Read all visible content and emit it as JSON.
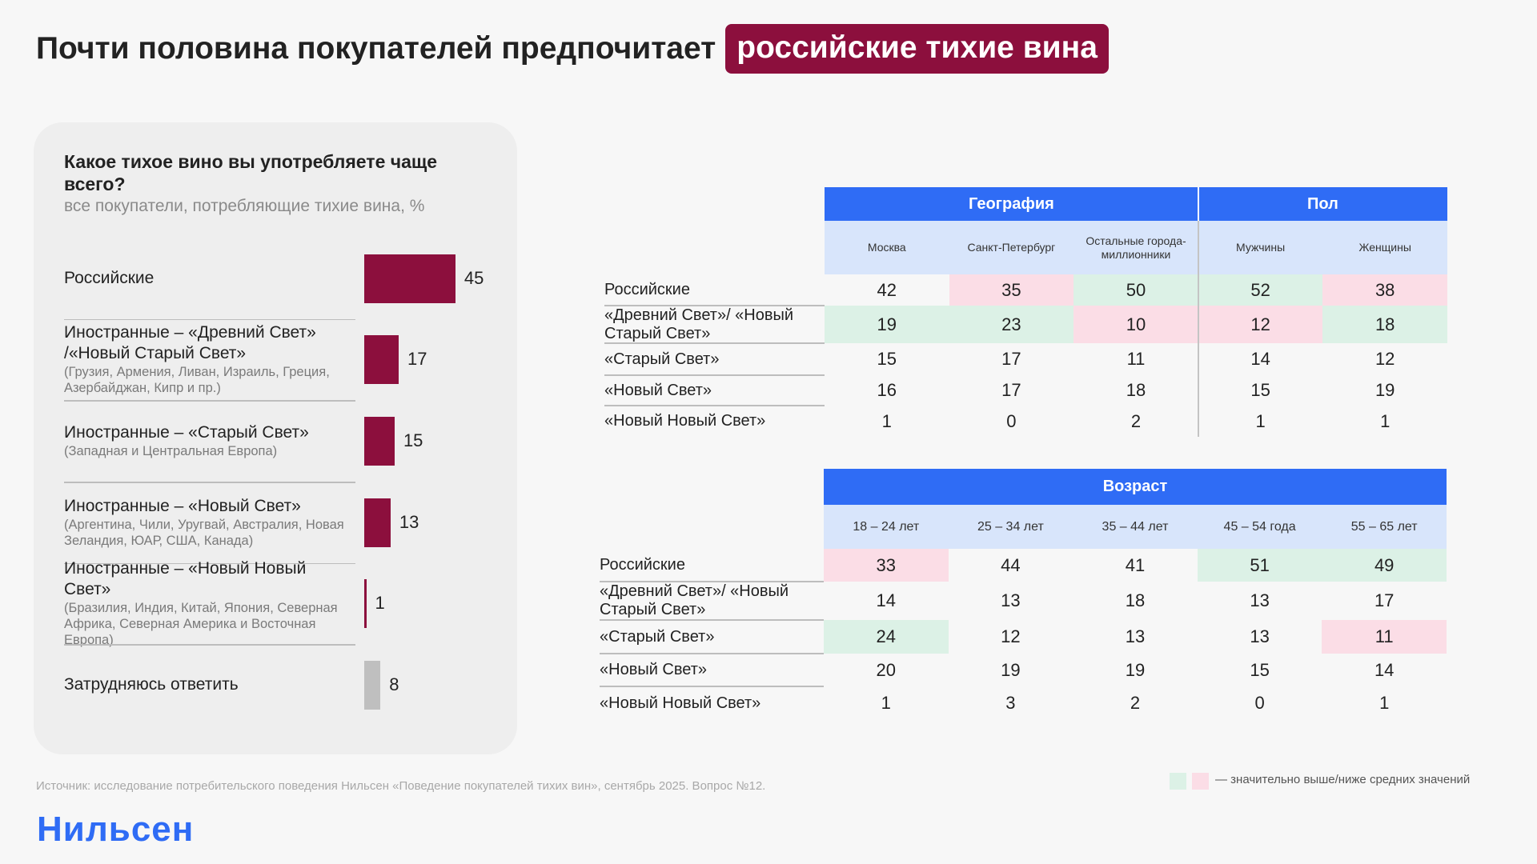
{
  "header": {
    "title": "Почти половина покупателей предпочитает",
    "title_highlight": "российские тихие вина"
  },
  "chart_data": {
    "type": "bar",
    "orientation": "horizontal",
    "title": "Какое тихое вино вы употребляете чаще всего?",
    "subtitle": "все покупатели, потребляющие тихие вина, %",
    "categories": [
      "Российские",
      "Иностранные – «Древний Свет» /«Новый Старый Свет»",
      "Иностранные – «Старый Свет»",
      "Иностранные – «Новый Свет»",
      "Иностранные – «Новый Новый Свет»",
      "Затрудняюсь ответить"
    ],
    "category_notes": [
      null,
      "(Грузия, Армения, Ливан, Израиль, Греция, Азербайджан, Кипр и пр.)",
      "(Западная и Центральная Европа)",
      "(Аргентина, Чили, Уругвай, Австралия, Новая Зеландия, ЮАР, США, Канада)",
      "(Бразилия, Индия, Китай, Япония, Северная Африка, Северная Америка и Восточная Европа)",
      null
    ],
    "values": [
      45,
      17,
      15,
      13,
      1,
      8
    ],
    "colors": [
      "#8c0f3d",
      "#8c0f3d",
      "#8c0f3d",
      "#8c0f3d",
      "#8c0f3d",
      "#bfbfbf"
    ]
  },
  "tables": [
    {
      "groups": [
        {
          "label": "География",
          "span": 3
        },
        {
          "label": "Пол",
          "span": 2
        }
      ],
      "columns": [
        "Москва",
        "Санкт-Петербург",
        "Остальные города-миллионники",
        "Мужчины",
        "Женщины"
      ],
      "rows": [
        {
          "label": "Российские",
          "values": [
            42,
            35,
            50,
            52,
            38
          ],
          "colors": [
            null,
            "#fbdde6",
            "#dcf1e6",
            "#dcf1e6",
            "#fbdde6"
          ]
        },
        {
          "label": "«Древний Свет»/ «Новый Старый Свет»",
          "values": [
            19,
            23,
            10,
            12,
            18
          ],
          "colors": [
            "#dcf1e6",
            "#dcf1e6",
            "#fbdde6",
            "#fbdde6",
            "#dcf1e6"
          ]
        },
        {
          "label": "«Старый Свет»",
          "values": [
            15,
            17,
            11,
            14,
            12
          ],
          "colors": [
            null,
            null,
            null,
            null,
            null
          ]
        },
        {
          "label": "«Новый Свет»",
          "values": [
            16,
            17,
            18,
            15,
            19
          ],
          "colors": [
            null,
            null,
            null,
            null,
            null
          ]
        },
        {
          "label": "«Новый Новый Свет»",
          "values": [
            1,
            0,
            2,
            1,
            1
          ],
          "colors": [
            null,
            null,
            null,
            null,
            null
          ]
        }
      ]
    },
    {
      "groups": [
        {
          "label": "Возраст",
          "span": 5
        }
      ],
      "columns": [
        "18 – 24 лет",
        "25 – 34 лет",
        "35 – 44 лет",
        "45 – 54 года",
        "55 – 65 лет"
      ],
      "rows": [
        {
          "label": "Российские",
          "values": [
            33,
            44,
            41,
            51,
            49
          ],
          "colors": [
            "#fbdde6",
            null,
            null,
            "#dcf1e6",
            "#dcf1e6"
          ]
        },
        {
          "label": "«Древний Свет»/ «Новый Старый Свет»",
          "values": [
            14,
            13,
            18,
            13,
            17
          ],
          "colors": [
            null,
            null,
            null,
            null,
            null
          ]
        },
        {
          "label": "«Старый Свет»",
          "values": [
            24,
            12,
            13,
            13,
            11
          ],
          "colors": [
            "#dcf1e6",
            null,
            null,
            null,
            "#fbdde6"
          ]
        },
        {
          "label": "«Новый Свет»",
          "values": [
            20,
            19,
            19,
            15,
            14
          ],
          "colors": [
            null,
            null,
            null,
            null,
            null
          ]
        },
        {
          "label": "«Новый Новый Свет»",
          "values": [
            1,
            3,
            2,
            0,
            1
          ],
          "colors": [
            null,
            null,
            null,
            null,
            null
          ]
        }
      ]
    }
  ],
  "legend": {
    "colors": [
      "#dcf1e6",
      "#fbdde6"
    ],
    "label": "— значительно выше/ниже средних значений"
  },
  "footer": {
    "source": "Источник: исследование потребительского поведения Нильсен «Поведение покупателей тихих вин», сентябрь 2025. Вопрос №12.",
    "logo": "Нильсен"
  }
}
